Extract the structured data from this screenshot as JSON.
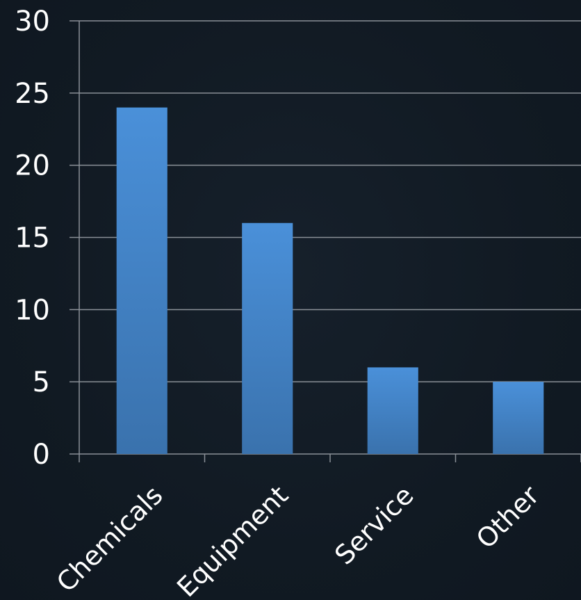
{
  "chart_data": {
    "type": "bar",
    "categories": [
      "Chemicals",
      "Equipment",
      "Service",
      "Other"
    ],
    "values": [
      24,
      16,
      6,
      5
    ],
    "ylim": [
      0,
      30
    ],
    "yticks": [
      0,
      5,
      10,
      15,
      20,
      25,
      30
    ],
    "grid": true,
    "legend": "none",
    "title": "",
    "xlabel": "",
    "ylabel": "",
    "colors": {
      "bar_top": "#4a90d9",
      "bar_bottom": "#3a72ad",
      "gridline": "#8a9097",
      "axis": "#8a9097",
      "text": "#ffffff"
    }
  }
}
